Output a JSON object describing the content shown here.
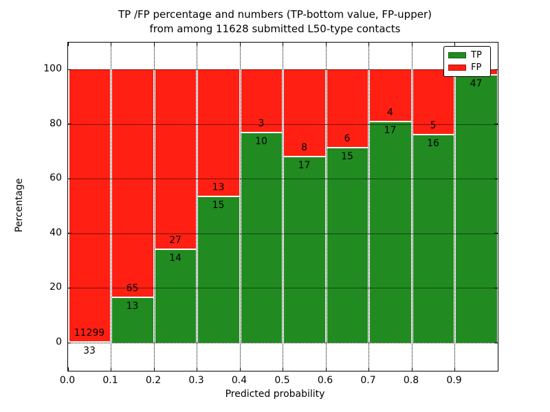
{
  "chart_data": {
    "type": "bar",
    "stacked": true,
    "normalized_to_percent": true,
    "title_line1": "TP /FP percentage and numbers (TP-bottom value, FP-upper)",
    "title_line2": "from among 11628 submitted L50-type contacts",
    "xlabel": "Predicted probability",
    "ylabel": "Percentage",
    "x_tick_labels": [
      "0.0",
      "0.1",
      "0.2",
      "0.3",
      "0.4",
      "0.5",
      "0.6",
      "0.7",
      "0.8",
      "0.9"
    ],
    "y_tick_values": [
      0,
      20,
      40,
      60,
      80,
      100
    ],
    "xlim": [
      0.0,
      1.0
    ],
    "ylim": [
      -10.5,
      110
    ],
    "grid": "dotted",
    "bin_width": 0.1,
    "series": [
      {
        "name": "TP",
        "position": "bottom",
        "color": "#218b21"
      },
      {
        "name": "FP",
        "position": "upper",
        "color": "#ff1f13"
      }
    ],
    "bars": [
      {
        "x_range": "0.0-0.1",
        "tp_label": "33",
        "fp_label": "11299",
        "tp_pct": 0.3
      },
      {
        "x_range": "0.1-0.2",
        "tp_label": "13",
        "fp_label": "65",
        "tp_pct": 16.7
      },
      {
        "x_range": "0.2-0.3",
        "tp_label": "14",
        "fp_label": "27",
        "tp_pct": 34.1
      },
      {
        "x_range": "0.3-0.4",
        "tp_label": "15",
        "fp_label": "13",
        "tp_pct": 53.6
      },
      {
        "x_range": "0.4-0.5",
        "tp_label": "10",
        "fp_label": "3",
        "tp_pct": 76.9
      },
      {
        "x_range": "0.5-0.6",
        "tp_label": "17",
        "fp_label": "8",
        "tp_pct": 68.0
      },
      {
        "x_range": "0.6-0.7",
        "tp_label": "15",
        "fp_label": "6",
        "tp_pct": 71.4
      },
      {
        "x_range": "0.7-0.8",
        "tp_label": "17",
        "fp_label": "4",
        "tp_pct": 81.0
      },
      {
        "x_range": "0.8-0.9",
        "tp_label": "16",
        "fp_label": "5",
        "tp_pct": 76.2
      },
      {
        "x_range": "0.9-1.0",
        "tp_label": "47",
        "fp_label": "",
        "tp_pct": 97.9
      }
    ],
    "legend": {
      "position": "upper right",
      "entries": [
        {
          "label": "TP",
          "color": "#218b21"
        },
        {
          "label": "FP",
          "color": "#ff1f13"
        }
      ]
    },
    "colors": {
      "tp": "#218b21",
      "fp": "#ff1f13",
      "grid": "#000000",
      "background": "#ffffff"
    }
  }
}
